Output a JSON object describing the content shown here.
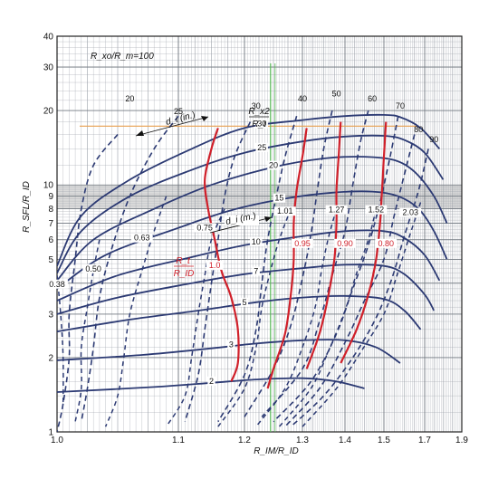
{
  "chart_data": {
    "type": "line",
    "xscale": "linear",
    "yscale": "log",
    "xlim": [
      1.0,
      1.9
    ],
    "ylim": [
      1,
      40
    ],
    "x_ticks": [
      "1.0",
      "1.1",
      "1.2",
      "1.3",
      "1.4",
      "1.5",
      "1.7",
      "1.9"
    ],
    "x_tick_values": [
      1.0,
      1.1,
      1.2,
      1.3,
      1.4,
      1.5,
      1.7,
      1.9
    ],
    "y_ticks": [
      "1",
      "2",
      "3",
      "4",
      "5",
      "6",
      "7",
      "8",
      "9",
      "10",
      "20",
      "30",
      "40"
    ],
    "y_tick_values": [
      1,
      2,
      3,
      4,
      5,
      6,
      7,
      8,
      9,
      10,
      20,
      30,
      40
    ],
    "xlabel": "R_IM/R_ID",
    "ylabel": "R_SFL/R_ID",
    "annotations": {
      "parameter": "R_xo/R_m=100",
      "ratio_top": "R_x2",
      "ratio_bottom": "R_t",
      "di_inches": "d_i (in.)",
      "di_mm": "d_i (m.)",
      "red_top": "R_t",
      "red_bottom": "R_ID"
    },
    "colors": {
      "solid": "#2c3a73",
      "dashed": "#2c3a73",
      "red": "#d0202a",
      "grid": "#9aa0a8",
      "band": "#bdbdbd",
      "crosshair_h": "#e8a050",
      "crosshair_v": "#55b855"
    },
    "solid_curves": [
      {
        "label": "30",
        "label_x": 1.23,
        "points": [
          [
            1.0,
            4.7
          ],
          [
            1.02,
            7.5
          ],
          [
            1.06,
            10.5
          ],
          [
            1.12,
            14
          ],
          [
            1.2,
            17
          ],
          [
            1.3,
            18.3
          ],
          [
            1.4,
            19
          ],
          [
            1.5,
            19.2
          ],
          [
            1.58,
            18.8
          ],
          [
            1.68,
            17
          ],
          [
            1.78,
            14
          ]
        ]
      },
      {
        "label": "25",
        "label_x": 1.23,
        "points": [
          [
            1.0,
            4.4
          ],
          [
            1.02,
            6.5
          ],
          [
            1.06,
            9
          ],
          [
            1.12,
            11.5
          ],
          [
            1.2,
            13.5
          ],
          [
            1.3,
            15
          ],
          [
            1.4,
            15.7
          ],
          [
            1.5,
            15.8
          ],
          [
            1.6,
            15.2
          ],
          [
            1.7,
            13.5
          ],
          [
            1.8,
            10.5
          ]
        ]
      },
      {
        "label": "20",
        "label_x": 1.25,
        "points": [
          [
            1.0,
            4.1
          ],
          [
            1.03,
            6
          ],
          [
            1.08,
            8
          ],
          [
            1.15,
            10
          ],
          [
            1.25,
            11.8
          ],
          [
            1.35,
            12.8
          ],
          [
            1.45,
            13
          ],
          [
            1.55,
            12.6
          ],
          [
            1.65,
            11.3
          ],
          [
            1.75,
            9
          ],
          [
            1.82,
            7
          ]
        ]
      },
      {
        "label": "15",
        "label_x": 1.26,
        "points": [
          [
            1.0,
            3.8
          ],
          [
            1.04,
            5.2
          ],
          [
            1.1,
            6.7
          ],
          [
            1.18,
            7.9
          ],
          [
            1.27,
            8.8
          ],
          [
            1.37,
            9.3
          ],
          [
            1.47,
            9.4
          ],
          [
            1.57,
            9
          ],
          [
            1.67,
            8
          ],
          [
            1.75,
            6.5
          ],
          [
            1.82,
            5
          ]
        ]
      },
      {
        "label": "10",
        "label_x": 1.22,
        "points": [
          [
            1.0,
            3.4
          ],
          [
            1.05,
            4.3
          ],
          [
            1.12,
            5.1
          ],
          [
            1.2,
            5.7
          ],
          [
            1.3,
            6.2
          ],
          [
            1.4,
            6.5
          ],
          [
            1.5,
            6.5
          ],
          [
            1.6,
            6.1
          ],
          [
            1.7,
            5.2
          ],
          [
            1.78,
            4.1
          ]
        ]
      },
      {
        "label": "7",
        "label_x": 1.22,
        "points": [
          [
            1.0,
            3.0
          ],
          [
            1.05,
            3.5
          ],
          [
            1.12,
            4
          ],
          [
            1.2,
            4.35
          ],
          [
            1.3,
            4.6
          ],
          [
            1.4,
            4.75
          ],
          [
            1.5,
            4.7
          ],
          [
            1.6,
            4.35
          ],
          [
            1.7,
            3.6
          ],
          [
            1.75,
            3.1
          ]
        ]
      },
      {
        "label": "5",
        "label_x": 1.2,
        "points": [
          [
            1.0,
            2.55
          ],
          [
            1.06,
            2.85
          ],
          [
            1.13,
            3.1
          ],
          [
            1.22,
            3.35
          ],
          [
            1.3,
            3.5
          ],
          [
            1.4,
            3.55
          ],
          [
            1.5,
            3.45
          ],
          [
            1.6,
            3.1
          ],
          [
            1.68,
            2.6
          ]
        ]
      },
      {
        "label": "3",
        "label_x": 1.18,
        "points": [
          [
            1.0,
            1.95
          ],
          [
            1.07,
            2.05
          ],
          [
            1.15,
            2.18
          ],
          [
            1.22,
            2.28
          ],
          [
            1.3,
            2.35
          ],
          [
            1.4,
            2.35
          ],
          [
            1.48,
            2.2
          ],
          [
            1.58,
            1.9
          ]
        ]
      },
      {
        "label": "2",
        "label_x": 1.15,
        "points": [
          [
            1.0,
            1.45
          ],
          [
            1.08,
            1.52
          ],
          [
            1.15,
            1.58
          ],
          [
            1.22,
            1.63
          ],
          [
            1.3,
            1.65
          ],
          [
            1.38,
            1.6
          ],
          [
            1.45,
            1.5
          ]
        ]
      }
    ],
    "dashed_curves": [
      {
        "label": "20",
        "label_x": 1.06,
        "label_y": 22,
        "points": [
          [
            1.05,
            16
          ],
          [
            1.03,
            12
          ],
          [
            1.02,
            8
          ],
          [
            1.015,
            5
          ],
          [
            1.01,
            3
          ],
          [
            1.01,
            2
          ],
          [
            1.005,
            1.3
          ],
          [
            1.0,
            1.0
          ]
        ]
      },
      {
        "label": "25",
        "label_x": 1.1,
        "label_y": 19.5,
        "points": [
          [
            1.1,
            19
          ],
          [
            1.08,
            14
          ],
          [
            1.06,
            9
          ],
          [
            1.045,
            5.5
          ],
          [
            1.035,
            3.5
          ],
          [
            1.03,
            2.2
          ],
          [
            1.025,
            1.5
          ],
          [
            1.02,
            1.1
          ]
        ]
      },
      {
        "label": "30",
        "label_x": 1.22,
        "label_y": 20.5,
        "points": [
          [
            1.21,
            18
          ],
          [
            1.185,
            13
          ],
          [
            1.17,
            9
          ],
          [
            1.16,
            6
          ],
          [
            1.15,
            4
          ],
          [
            1.14,
            2.6
          ],
          [
            1.13,
            1.7
          ],
          [
            1.11,
            1.1
          ]
        ]
      },
      {
        "label": "40",
        "label_x": 1.3,
        "label_y": 22,
        "points": [
          [
            1.29,
            19
          ],
          [
            1.27,
            13
          ],
          [
            1.255,
            9
          ],
          [
            1.24,
            6
          ],
          [
            1.23,
            4
          ],
          [
            1.22,
            2.6
          ],
          [
            1.2,
            1.7
          ],
          [
            1.16,
            1.1
          ]
        ]
      },
      {
        "label": "50",
        "label_x": 1.38,
        "label_y": 23,
        "points": [
          [
            1.37,
            20
          ],
          [
            1.35,
            14
          ],
          [
            1.335,
            9.5
          ],
          [
            1.32,
            6.3
          ],
          [
            1.3,
            4.2
          ],
          [
            1.28,
            2.7
          ],
          [
            1.25,
            1.8
          ],
          [
            1.2,
            1.15
          ]
        ]
      },
      {
        "label": "60",
        "label_x": 1.47,
        "label_y": 22,
        "points": [
          [
            1.46,
            20
          ],
          [
            1.44,
            15
          ],
          [
            1.42,
            10
          ],
          [
            1.4,
            6.5
          ],
          [
            1.37,
            4.3
          ],
          [
            1.34,
            2.8
          ],
          [
            1.3,
            1.8
          ],
          [
            1.23,
            1.15
          ]
        ]
      },
      {
        "label": "70",
        "label_x": 1.58,
        "label_y": 20.5,
        "points": [
          [
            1.57,
            19
          ],
          [
            1.53,
            13
          ],
          [
            1.49,
            8.5
          ],
          [
            1.46,
            5.7
          ],
          [
            1.42,
            3.8
          ],
          [
            1.38,
            2.5
          ],
          [
            1.32,
            1.6
          ],
          [
            1.25,
            1.1
          ]
        ]
      },
      {
        "label": "80",
        "label_x": 1.67,
        "label_y": 16.5,
        "points": [
          [
            1.65,
            16
          ],
          [
            1.6,
            11
          ],
          [
            1.55,
            7.5
          ],
          [
            1.5,
            5
          ],
          [
            1.45,
            3.4
          ],
          [
            1.4,
            2.3
          ],
          [
            1.34,
            1.5
          ],
          [
            1.27,
            1.05
          ]
        ]
      },
      {
        "label": "90",
        "label_x": 1.75,
        "label_y": 15,
        "points": [
          [
            1.72,
            14
          ],
          [
            1.67,
            9.5
          ],
          [
            1.6,
            6.2
          ],
          [
            1.54,
            4.2
          ],
          [
            1.48,
            2.9
          ],
          [
            1.42,
            2
          ],
          [
            1.35,
            1.4
          ],
          [
            1.28,
            1.05
          ]
        ]
      }
    ],
    "mm_dashed_curves": [
      {
        "label": "0.38",
        "label_x": 1.0,
        "label_y": 3.9,
        "points": [
          [
            1.0,
            4.3
          ],
          [
            1.003,
            3
          ],
          [
            1.005,
            2
          ],
          [
            1.005,
            1.3
          ]
        ]
      },
      {
        "label": "0.50",
        "label_x": 1.03,
        "label_y": 4.5,
        "points": [
          [
            1.035,
            6
          ],
          [
            1.03,
            4.5
          ],
          [
            1.025,
            3.2
          ],
          [
            1.02,
            2.2
          ],
          [
            1.02,
            1.5
          ],
          [
            1.015,
            1.1
          ]
        ]
      },
      {
        "label": "0.63",
        "label_x": 1.07,
        "label_y": 6.0,
        "points": [
          [
            1.09,
            9
          ],
          [
            1.08,
            6.5
          ],
          [
            1.07,
            4.5
          ],
          [
            1.06,
            3
          ],
          [
            1.055,
            2
          ],
          [
            1.05,
            1.4
          ],
          [
            1.04,
            1.05
          ]
        ]
      },
      {
        "label": "0.75",
        "label_x": 1.14,
        "label_y": 6.6,
        "points": [
          [
            1.17,
            8
          ],
          [
            1.15,
            6
          ],
          [
            1.14,
            4.3
          ],
          [
            1.13,
            3
          ],
          [
            1.12,
            2
          ],
          [
            1.11,
            1.4
          ],
          [
            1.09,
            1.05
          ]
        ]
      },
      {
        "label": "1.01",
        "label_x": 1.27,
        "label_y": 7.7,
        "points": [
          [
            1.28,
            8
          ],
          [
            1.26,
            6
          ],
          [
            1.245,
            4.5
          ],
          [
            1.23,
            3.2
          ],
          [
            1.22,
            2.2
          ],
          [
            1.2,
            1.5
          ],
          [
            1.16,
            1.05
          ]
        ]
      },
      {
        "label": "1.27",
        "label_x": 1.38,
        "label_y": 7.8,
        "points": [
          [
            1.38,
            8
          ],
          [
            1.36,
            6
          ],
          [
            1.345,
            4.5
          ],
          [
            1.33,
            3.2
          ],
          [
            1.3,
            2.2
          ],
          [
            1.27,
            1.5
          ],
          [
            1.22,
            1.05
          ]
        ]
      },
      {
        "label": "1.52",
        "label_x": 1.48,
        "label_y": 7.8,
        "points": [
          [
            1.48,
            8
          ],
          [
            1.46,
            6
          ],
          [
            1.43,
            4.4
          ],
          [
            1.4,
            3.1
          ],
          [
            1.36,
            2.1
          ],
          [
            1.32,
            1.5
          ],
          [
            1.26,
            1.05
          ]
        ]
      },
      {
        "label": "2.03",
        "label_x": 1.63,
        "label_y": 7.6,
        "points": [
          [
            1.68,
            8.5
          ],
          [
            1.62,
            6
          ],
          [
            1.56,
            4.2
          ],
          [
            1.5,
            3
          ],
          [
            1.44,
            2.1
          ],
          [
            1.38,
            1.5
          ],
          [
            1.3,
            1.05
          ]
        ]
      }
    ],
    "red_curves": [
      {
        "label": "1.0",
        "label_x": 1.155,
        "label_y": 4.65,
        "points": [
          [
            1.16,
            17
          ],
          [
            1.15,
            14
          ],
          [
            1.14,
            10.5
          ],
          [
            1.145,
            8
          ],
          [
            1.155,
            6
          ],
          [
            1.165,
            4.5
          ],
          [
            1.18,
            3.5
          ],
          [
            1.19,
            2.6
          ],
          [
            1.19,
            1.9
          ],
          [
            1.18,
            1.6
          ]
        ]
      },
      {
        "label": "0.95",
        "label_x": 1.3,
        "label_y": 5.7,
        "points": [
          [
            1.31,
            17
          ],
          [
            1.3,
            13
          ],
          [
            1.29,
            9.5
          ],
          [
            1.285,
            7
          ],
          [
            1.285,
            5
          ],
          [
            1.28,
            3.6
          ],
          [
            1.27,
            2.5
          ],
          [
            1.25,
            1.8
          ],
          [
            1.24,
            1.5
          ]
        ]
      },
      {
        "label": "0.90",
        "label_x": 1.4,
        "label_y": 5.7,
        "points": [
          [
            1.39,
            18
          ],
          [
            1.385,
            13
          ],
          [
            1.38,
            9.5
          ],
          [
            1.38,
            7
          ],
          [
            1.375,
            5
          ],
          [
            1.36,
            3.5
          ],
          [
            1.34,
            2.5
          ],
          [
            1.31,
            1.8
          ]
        ]
      },
      {
        "label": "0.80",
        "label_x": 1.51,
        "label_y": 5.7,
        "points": [
          [
            1.51,
            18
          ],
          [
            1.5,
            13
          ],
          [
            1.495,
            9.5
          ],
          [
            1.49,
            7
          ],
          [
            1.48,
            5
          ],
          [
            1.46,
            3.6
          ],
          [
            1.43,
            2.6
          ],
          [
            1.39,
            1.9
          ]
        ]
      }
    ],
    "shaded_band": [
      8,
      10
    ],
    "crosshair": {
      "x": 1.245,
      "y": 17.3
    }
  }
}
